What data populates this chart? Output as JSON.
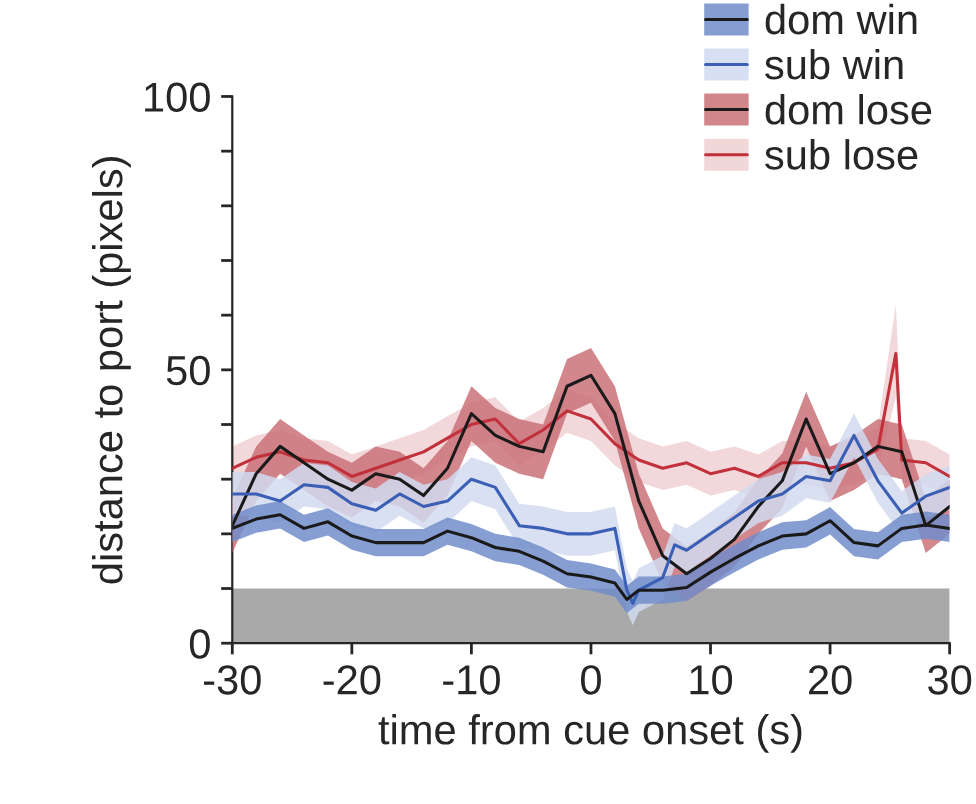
{
  "chart_data": {
    "type": "line",
    "xlabel": "time from cue onset (s)",
    "ylabel": "distance to port (pixels)",
    "xlim": [
      -30,
      30
    ],
    "xticks": [
      -30,
      -20,
      -10,
      0,
      10,
      20,
      30
    ],
    "ylim": [
      0,
      100
    ],
    "yticks": [
      0,
      {
        "value": 10,
        "label": null
      },
      {
        "value": 20,
        "label": null
      },
      {
        "value": 30,
        "label": null
      },
      {
        "value": 40,
        "label": null
      },
      50,
      {
        "value": 60,
        "label": null
      },
      {
        "value": 70,
        "label": null
      },
      {
        "value": 80,
        "label": null
      },
      {
        "value": 90,
        "label": null
      },
      100
    ],
    "grid": false,
    "legend": "top right",
    "bands": [
      {
        "axis": "y",
        "from": 0,
        "to": 10,
        "label": null,
        "color": "#a9a9a9"
      }
    ],
    "series": [
      {
        "name": "dom win",
        "color": "#1a1a1a",
        "x": [
          -30,
          -28,
          -26,
          -24,
          -22,
          -20,
          -18,
          -16,
          -14,
          -12,
          -10,
          -8,
          -6,
          -4,
          -2,
          0,
          2,
          3,
          4,
          6,
          8,
          10,
          12,
          14,
          16,
          18,
          20,
          22,
          24,
          26,
          28,
          30
        ],
        "values": [
          21,
          22.7,
          23.5,
          21,
          22.2,
          19.6,
          18.4,
          18.4,
          18.4,
          20.5,
          19.3,
          17.5,
          16.8,
          15,
          12.7,
          12.1,
          11,
          8,
          9.7,
          9.7,
          10.2,
          13,
          15.5,
          17.8,
          19.6,
          20,
          22.4,
          18.4,
          17.8,
          21,
          21.6,
          21
        ],
        "lower": [
          18.5,
          20.2,
          21,
          18.5,
          19.7,
          17.1,
          15.9,
          15.9,
          15.9,
          18,
          16.8,
          15,
          14.3,
          12.5,
          10.2,
          9.6,
          8.5,
          5.5,
          7.2,
          7.2,
          7.7,
          10.5,
          13,
          15.3,
          17.1,
          17.5,
          19.9,
          15.9,
          15.3,
          18.5,
          19.1,
          18.5
        ],
        "upper": [
          23.5,
          25.2,
          26,
          23.5,
          24.7,
          22.1,
          20.9,
          20.9,
          20.9,
          23,
          21.8,
          20,
          19.3,
          17.5,
          15.2,
          14.6,
          13.5,
          10.5,
          12.2,
          12.2,
          12.7,
          15.5,
          18,
          20.3,
          22.1,
          22.5,
          24.9,
          20.9,
          20.3,
          23.5,
          24.1,
          23.5
        ]
      },
      {
        "name": "sub win",
        "color": "#3a5fb4",
        "x": [
          -30,
          -28,
          -26,
          -24,
          -22,
          -20,
          -18,
          -16,
          -14,
          -12,
          -10,
          -8,
          -6,
          -4,
          -2,
          0,
          2,
          3,
          3.5,
          4,
          6,
          7,
          8,
          10,
          12,
          14,
          16,
          18,
          20,
          22,
          24,
          26,
          28,
          30
        ],
        "values": [
          27.3,
          27.3,
          26,
          29,
          28.5,
          25.5,
          24.3,
          27.3,
          25,
          26,
          30,
          28.5,
          21.5,
          21,
          20,
          20,
          21,
          9.7,
          7.3,
          9.7,
          12,
          18,
          17,
          20,
          23,
          26,
          27.3,
          30.5,
          29.7,
          38,
          29.7,
          23.8,
          26.9,
          28.5
        ],
        "lower": [
          23.3,
          23.3,
          22,
          25,
          24.5,
          21.5,
          20.3,
          23.3,
          21,
          22,
          26,
          24.5,
          17.5,
          17,
          16,
          16,
          17,
          5.7,
          3.3,
          5.7,
          8,
          14,
          13,
          16,
          19,
          22,
          23.3,
          26.5,
          25.7,
          34,
          25.7,
          19.8,
          22.9,
          24.5
        ],
        "upper": [
          31.3,
          31.3,
          30,
          33,
          32.5,
          29.5,
          28.3,
          31.3,
          29,
          30,
          34,
          32.5,
          25.5,
          25,
          24,
          24,
          25,
          13.7,
          11.3,
          13.7,
          16,
          22,
          21,
          24,
          27,
          30,
          31.3,
          34.5,
          33.7,
          42,
          33.7,
          27.8,
          30.9,
          32.5
        ]
      },
      {
        "name": "dom lose",
        "color": "#1a1a1a",
        "x": [
          -30,
          -28,
          -26,
          -24,
          -22,
          -20,
          -18,
          -16,
          -14,
          -12,
          -10,
          -8,
          -6,
          -4,
          -2,
          0,
          2,
          4,
          6,
          8,
          10,
          12,
          14,
          16,
          18,
          20,
          22,
          24,
          26,
          28,
          30
        ],
        "values": [
          21.5,
          31,
          36,
          33,
          30,
          28,
          31,
          30,
          27,
          32,
          42,
          38,
          36,
          35,
          47,
          49,
          42,
          26,
          16,
          12.7,
          15.5,
          19,
          25,
          29.7,
          41,
          31,
          33,
          36,
          35,
          21.5,
          25
        ],
        "lower": [
          16.5,
          26,
          31,
          28,
          25,
          23,
          26,
          25,
          22,
          27,
          37,
          33,
          31,
          30,
          42,
          44,
          37,
          21,
          11,
          7.7,
          10.5,
          14,
          20,
          24.7,
          36,
          26,
          28,
          31,
          30,
          16.5,
          20
        ],
        "upper": [
          26.5,
          36,
          41,
          38,
          35,
          33,
          36,
          35,
          32,
          37,
          47,
          43,
          41,
          40,
          52,
          54,
          47,
          31,
          21,
          17.7,
          20.5,
          24,
          30,
          34.7,
          46,
          36,
          38,
          41,
          40,
          26.5,
          30
        ]
      },
      {
        "name": "sub lose",
        "color": "#c1303b",
        "x": [
          -30,
          -28,
          -26,
          -24,
          -22,
          -20,
          -18,
          -16,
          -14,
          -12,
          -10,
          -8,
          -6,
          -4,
          -2,
          0,
          2,
          4,
          6,
          8,
          10,
          12,
          14,
          16,
          18,
          20,
          22,
          24,
          25.5,
          26,
          28,
          30
        ],
        "values": [
          32,
          34,
          35,
          33.5,
          33,
          30.5,
          32,
          33.5,
          35,
          37.5,
          40,
          41,
          36.5,
          39,
          42.5,
          41,
          36.5,
          33.5,
          32,
          33,
          31,
          32,
          30.5,
          33,
          33,
          32,
          33,
          35.5,
          53,
          33.5,
          33,
          30.5
        ],
        "lower": [
          28,
          30,
          31,
          29.5,
          29,
          26.5,
          28,
          29.5,
          31,
          33.5,
          36,
          37,
          32.5,
          35,
          38.5,
          37,
          32.5,
          29.5,
          28,
          29,
          27,
          28,
          26.5,
          29,
          29,
          28,
          29,
          31.5,
          45,
          29.5,
          29,
          26.5
        ],
        "upper": [
          36,
          38,
          39,
          37.5,
          37,
          34.5,
          36,
          37.5,
          39,
          41.5,
          44,
          45,
          40.5,
          43,
          46.5,
          45,
          40.5,
          37.5,
          36,
          37,
          35,
          36,
          34.5,
          37,
          37,
          36,
          37,
          39.5,
          62,
          37.5,
          37,
          34.5
        ]
      }
    ]
  }
}
